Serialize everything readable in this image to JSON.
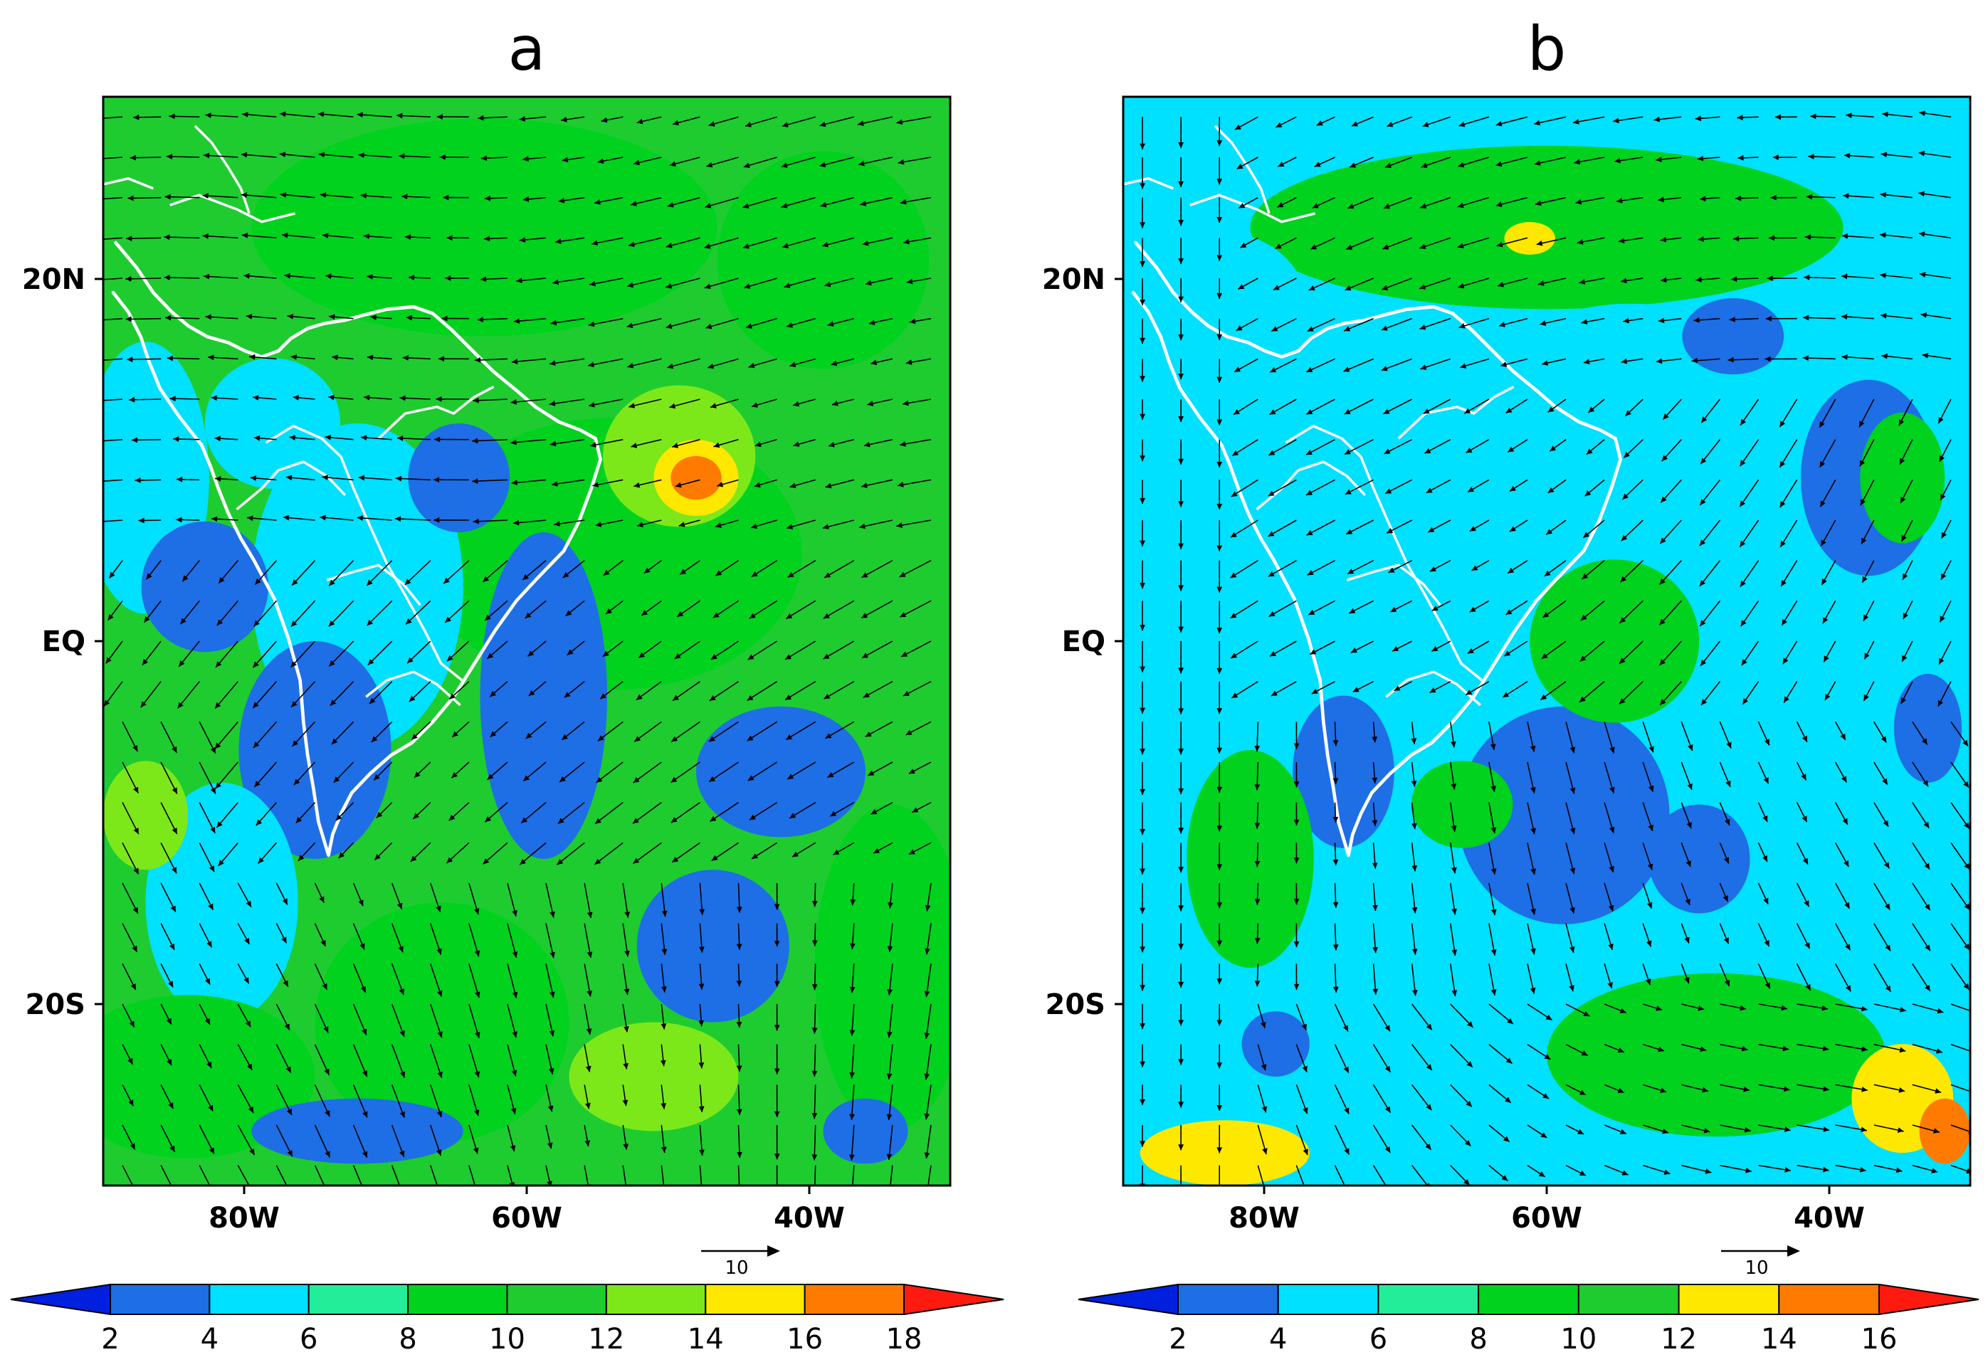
{
  "colors": {
    "levels": [
      "#0020e0",
      "#1e6ee6",
      "#00e0ff",
      "#22ee9a",
      "#00d21e",
      "#1ecc30",
      "#7ce81a",
      "#ffe800",
      "#ff7a00",
      "#ff1a10"
    ],
    "coast": "#ffffff",
    "vector": "#000000"
  },
  "panels": [
    {
      "id": "a",
      "title": "a",
      "lon_range": [
        -90,
        -30
      ],
      "lat_range": [
        -30,
        30
      ],
      "lat_ticks": [
        {
          "value": 20,
          "label": "20N"
        },
        {
          "value": 0,
          "label": "EQ"
        },
        {
          "value": -20,
          "label": "20S"
        }
      ],
      "lon_ticks": [
        {
          "value": -80,
          "label": "80W"
        },
        {
          "value": -60,
          "label": "60W"
        },
        {
          "value": -40,
          "label": "40W"
        }
      ],
      "reference_vector": {
        "magnitude": 10,
        "label": "10"
      },
      "colorbar": {
        "levels": [
          2,
          4,
          6,
          8,
          10,
          12,
          14,
          16,
          18
        ],
        "labels": [
          "2",
          "4",
          "6",
          "8",
          "10",
          "12",
          "14",
          "16",
          "18"
        ],
        "extend": "both"
      }
    },
    {
      "id": "b",
      "title": "b",
      "lon_range": [
        -90,
        -30
      ],
      "lat_range": [
        -30,
        30
      ],
      "lat_ticks": [
        {
          "value": 20,
          "label": "20N"
        },
        {
          "value": 0,
          "label": "EQ"
        },
        {
          "value": -20,
          "label": "20S"
        }
      ],
      "lon_ticks": [
        {
          "value": -80,
          "label": "80W"
        },
        {
          "value": -60,
          "label": "60W"
        },
        {
          "value": -40,
          "label": "40W"
        }
      ],
      "reference_vector": {
        "magnitude": 10,
        "label": "10"
      },
      "colorbar": {
        "levels": [
          2,
          4,
          6,
          8,
          10,
          12,
          14,
          16
        ],
        "labels": [
          "2",
          "4",
          "6",
          "8",
          "10",
          "12",
          "14",
          "16"
        ],
        "extend": "both"
      }
    }
  ]
}
